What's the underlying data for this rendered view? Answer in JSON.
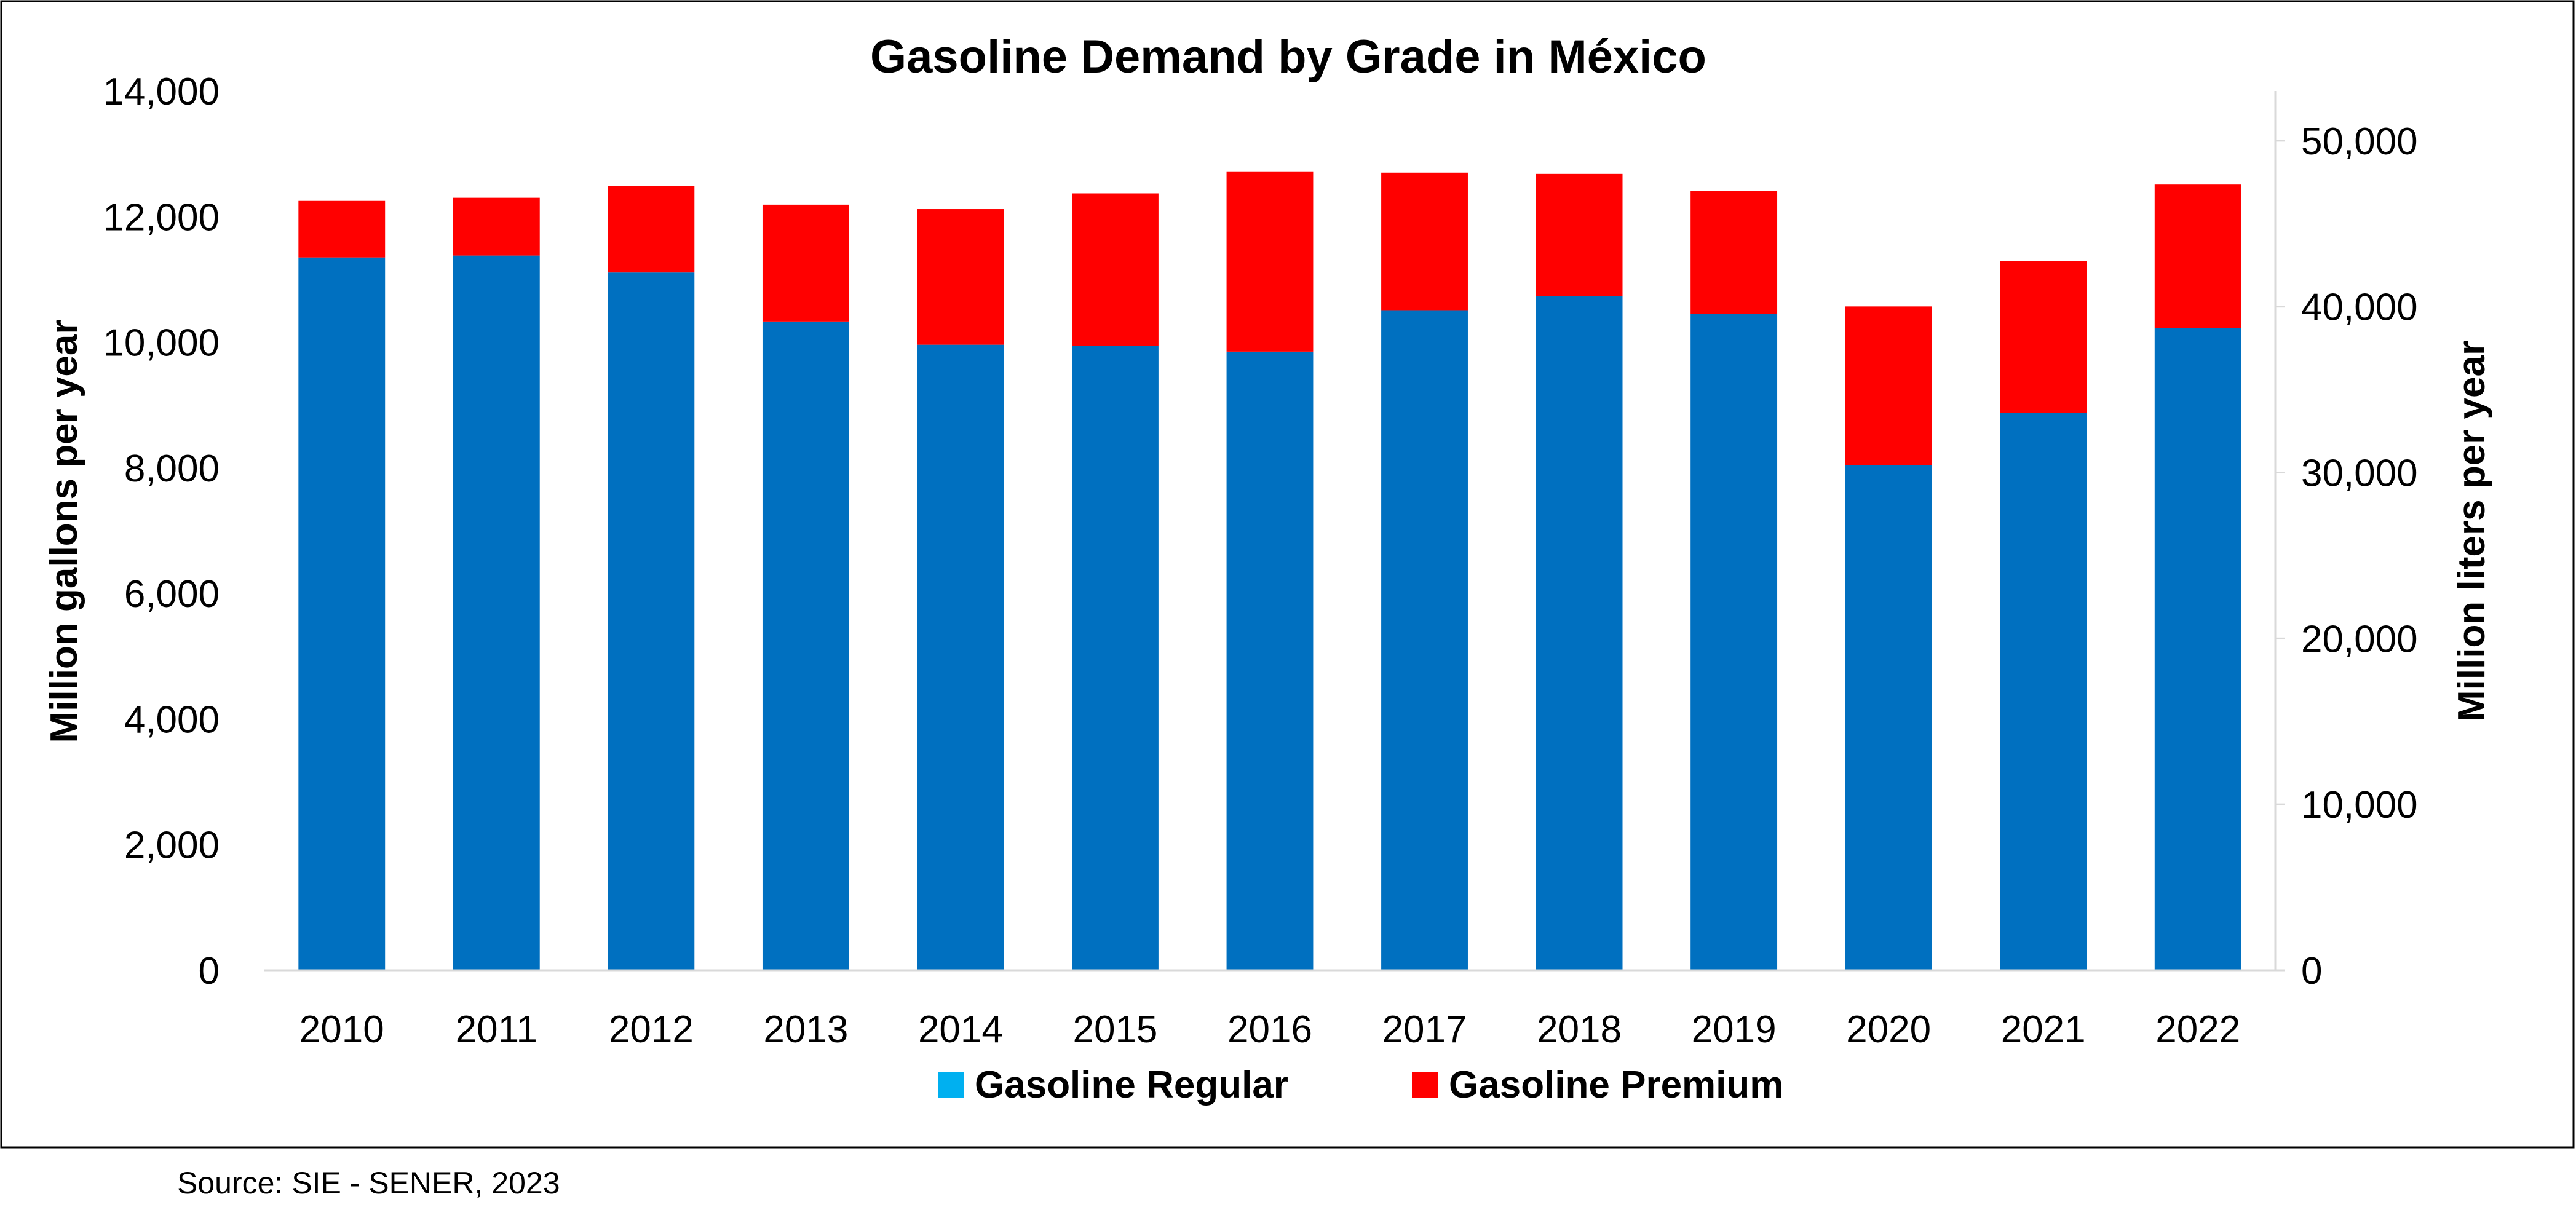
{
  "chart_data": {
    "type": "bar",
    "stacked": true,
    "title": "Gasoline Demand by Grade in México",
    "ylabel": "Million gallons per year",
    "y2label": "Million liters per year",
    "ylim": [
      0,
      14000
    ],
    "y2lim": [
      0,
      52996
    ],
    "yticks": [
      0,
      2000,
      4000,
      6000,
      8000,
      10000,
      12000,
      14000
    ],
    "y2ticks": [
      0,
      10000,
      20000,
      30000,
      40000,
      50000
    ],
    "tick_format": "thousands-comma",
    "categories": [
      "2010",
      "2011",
      "2012",
      "2013",
      "2014",
      "2015",
      "2016",
      "2017",
      "2018",
      "2019",
      "2020",
      "2021",
      "2022"
    ],
    "series": [
      {
        "name": "Gasoline Regular",
        "color": "#0070C0",
        "values": [
          11350,
          11380,
          11110,
          10330,
          9960,
          9940,
          9850,
          10510,
          10730,
          10450,
          8040,
          8870,
          10230
        ]
      },
      {
        "name": "Gasoline Premium",
        "color": "#FF0000",
        "values": [
          900,
          920,
          1380,
          1860,
          2160,
          2430,
          2870,
          2190,
          1950,
          1960,
          2530,
          2420,
          2280
        ]
      }
    ],
    "legend": {
      "position": "bottom",
      "entries": [
        {
          "label": "Gasoline Regular",
          "color": "#00B0F0"
        },
        {
          "label": "Gasoline Premium",
          "color": "#FF0000"
        }
      ]
    },
    "grid": false
  },
  "source": "Source: SIE - SENER, 2023"
}
